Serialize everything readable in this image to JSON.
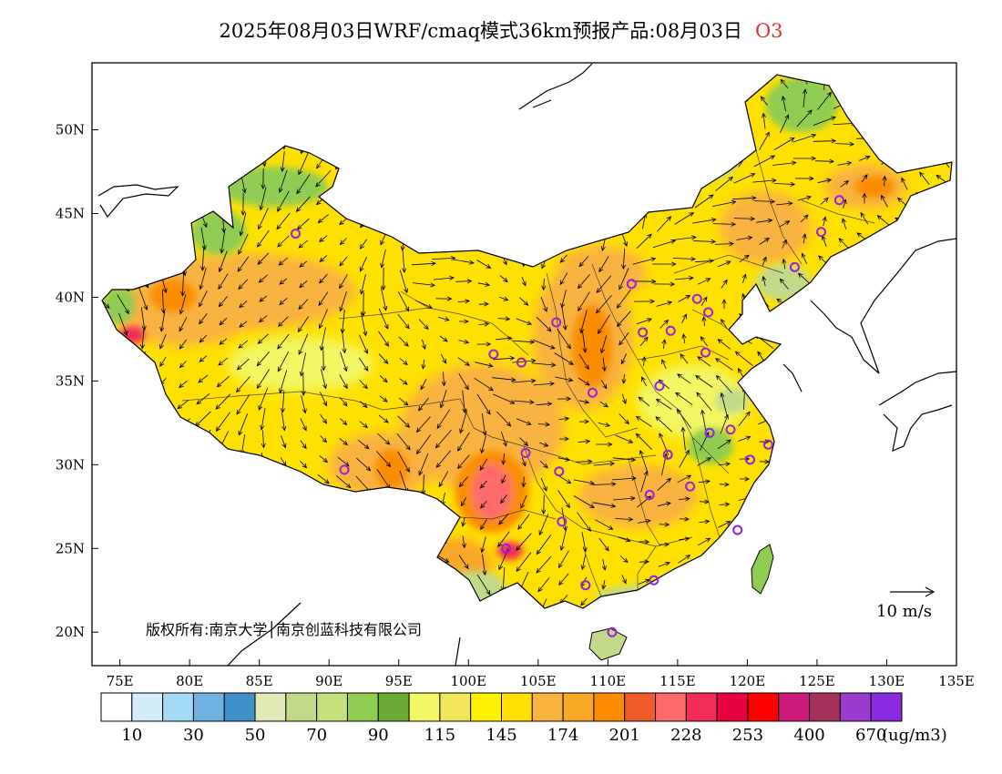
{
  "title": {
    "text": "2025年08月03日WRF/cmaq模式36km预报产品:08月03日",
    "pollutant": "O3"
  },
  "map": {
    "lon_range": [
      73,
      135
    ],
    "lat_range": [
      18,
      54
    ],
    "x_ticks": [
      {
        "lon": 75,
        "label": "75E"
      },
      {
        "lon": 80,
        "label": "80E"
      },
      {
        "lon": 85,
        "label": "85E"
      },
      {
        "lon": 90,
        "label": "90E"
      },
      {
        "lon": 95,
        "label": "95E"
      },
      {
        "lon": 100,
        "label": "100E"
      },
      {
        "lon": 105,
        "label": "105E"
      },
      {
        "lon": 110,
        "label": "110E"
      },
      {
        "lon": 115,
        "label": "115E"
      },
      {
        "lon": 120,
        "label": "120E"
      },
      {
        "lon": 125,
        "label": "125E"
      },
      {
        "lon": 130,
        "label": "130E"
      },
      {
        "lon": 135,
        "label": "135E"
      }
    ],
    "y_ticks": [
      {
        "lat": 20,
        "label": "20N"
      },
      {
        "lat": 25,
        "label": "25N"
      },
      {
        "lat": 30,
        "label": "30N"
      },
      {
        "lat": 35,
        "label": "35N"
      },
      {
        "lat": 40,
        "label": "40N"
      },
      {
        "lat": 45,
        "label": "45N"
      },
      {
        "lat": 50,
        "label": "50N"
      }
    ],
    "wind_reference": "10 m/s",
    "copyright": "版权所有:南京大学│南京创蓝科技有限公司",
    "stations": [
      [
        87.6,
        43.8
      ],
      [
        91.1,
        29.7
      ],
      [
        101.8,
        36.6
      ],
      [
        103.8,
        36.1
      ],
      [
        106.3,
        38.5
      ],
      [
        111.7,
        40.8
      ],
      [
        112.5,
        37.9
      ],
      [
        114.5,
        38.0
      ],
      [
        116.4,
        39.9
      ],
      [
        117.2,
        39.1
      ],
      [
        117.0,
        36.7
      ],
      [
        113.7,
        34.7
      ],
      [
        108.9,
        34.3
      ],
      [
        104.1,
        30.7
      ],
      [
        106.5,
        29.6
      ],
      [
        114.3,
        30.6
      ],
      [
        117.3,
        31.9
      ],
      [
        118.8,
        32.1
      ],
      [
        120.2,
        30.3
      ],
      [
        121.5,
        31.2
      ],
      [
        115.9,
        28.7
      ],
      [
        113.0,
        28.2
      ],
      [
        106.7,
        26.6
      ],
      [
        102.7,
        25.0
      ],
      [
        108.4,
        22.8
      ],
      [
        113.3,
        23.1
      ],
      [
        119.3,
        26.1
      ],
      [
        110.3,
        20.0
      ],
      [
        123.4,
        41.8
      ],
      [
        125.3,
        43.9
      ],
      [
        126.6,
        45.8
      ]
    ]
  },
  "legend": {
    "unit": "(ug/m3)",
    "colors": [
      "#ffffff",
      "#d4edfb",
      "#a3daf6",
      "#6eb3e0",
      "#3f8fc9",
      "#e1e9b7",
      "#c2d98a",
      "#c5e07a",
      "#8fcc52",
      "#6aab35",
      "#f3f764",
      "#f2e65a",
      "#fff200",
      "#ffe000",
      "#f9b340",
      "#f9a825",
      "#fb8c00",
      "#ef5b2a",
      "#ff6a6a",
      "#f22c56",
      "#e8003f",
      "#ff0000",
      "#cc1a7a",
      "#a6305c",
      "#9b3bcf",
      "#8a2be2"
    ],
    "labels": [
      {
        "after_box": 1,
        "text": "10"
      },
      {
        "after_box": 3,
        "text": "30"
      },
      {
        "after_box": 5,
        "text": "50"
      },
      {
        "after_box": 7,
        "text": "70"
      },
      {
        "after_box": 9,
        "text": "90"
      },
      {
        "after_box": 11,
        "text": "115"
      },
      {
        "after_box": 13,
        "text": "145"
      },
      {
        "after_box": 15,
        "text": "174"
      },
      {
        "after_box": 17,
        "text": "201"
      },
      {
        "after_box": 19,
        "text": "228"
      },
      {
        "after_box": 21,
        "text": "253"
      },
      {
        "after_box": 23,
        "text": "400"
      },
      {
        "after_box": 25,
        "text": "670"
      }
    ]
  }
}
